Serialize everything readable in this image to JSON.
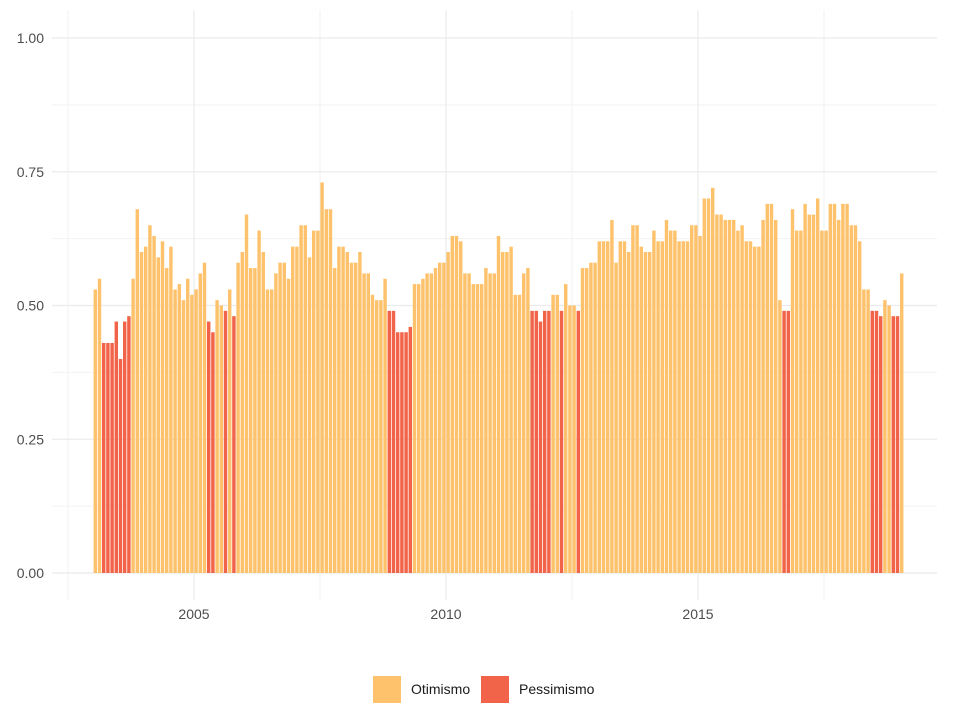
{
  "chart_data": {
    "type": "bar",
    "title": "",
    "xlabel": "",
    "ylabel": "",
    "ylim": [
      0,
      1
    ],
    "xlim": [
      2002.5,
      2019.5
    ],
    "y_ticks": [
      "0.00",
      "0.25",
      "0.50",
      "0.75",
      "1.00"
    ],
    "x_ticks": [
      "2005",
      "2010",
      "2015"
    ],
    "grid": true,
    "legend_position": "bottom",
    "legend": [
      {
        "key": "otimismo",
        "label": "Otimismo",
        "color": "#FEC26C"
      },
      {
        "key": "pessimismo",
        "label": "Pessimismo",
        "color": "#F2644A"
      }
    ],
    "start": "2003-01",
    "frequency": "monthly",
    "threshold": 0.5,
    "values": [
      0.53,
      0.55,
      0.43,
      0.43,
      0.43,
      0.47,
      0.4,
      0.47,
      0.48,
      0.55,
      0.68,
      0.6,
      0.61,
      0.65,
      0.63,
      0.59,
      0.62,
      0.57,
      0.61,
      0.53,
      0.54,
      0.51,
      0.55,
      0.52,
      0.53,
      0.56,
      0.58,
      0.47,
      0.45,
      0.51,
      0.5,
      0.49,
      0.53,
      0.48,
      0.58,
      0.6,
      0.67,
      0.57,
      0.57,
      0.64,
      0.6,
      0.53,
      0.53,
      0.56,
      0.58,
      0.58,
      0.55,
      0.61,
      0.61,
      0.65,
      0.65,
      0.59,
      0.64,
      0.64,
      0.73,
      0.68,
      0.68,
      0.57,
      0.61,
      0.61,
      0.6,
      0.58,
      0.58,
      0.6,
      0.56,
      0.56,
      0.52,
      0.51,
      0.51,
      0.55,
      0.49,
      0.49,
      0.45,
      0.45,
      0.45,
      0.46,
      0.54,
      0.54,
      0.55,
      0.56,
      0.56,
      0.57,
      0.58,
      0.58,
      0.6,
      0.63,
      0.63,
      0.62,
      0.56,
      0.56,
      0.54,
      0.54,
      0.54,
      0.57,
      0.56,
      0.56,
      0.63,
      0.6,
      0.6,
      0.61,
      0.52,
      0.52,
      0.56,
      0.57,
      0.49,
      0.49,
      0.47,
      0.49,
      0.49,
      0.52,
      0.52,
      0.49,
      0.54,
      0.5,
      0.5,
      0.49,
      0.57,
      0.57,
      0.58,
      0.58,
      0.62,
      0.62,
      0.62,
      0.66,
      0.58,
      0.62,
      0.62,
      0.6,
      0.65,
      0.65,
      0.61,
      0.6,
      0.6,
      0.64,
      0.62,
      0.62,
      0.66,
      0.64,
      0.64,
      0.62,
      0.62,
      0.62,
      0.65,
      0.65,
      0.63,
      0.7,
      0.7,
      0.72,
      0.67,
      0.67,
      0.66,
      0.66,
      0.66,
      0.64,
      0.65,
      0.62,
      0.62,
      0.61,
      0.61,
      0.66,
      0.69,
      0.69,
      0.66,
      0.51,
      0.49,
      0.49,
      0.68,
      0.64,
      0.64,
      0.69,
      0.67,
      0.67,
      0.7,
      0.64,
      0.64,
      0.69,
      0.69,
      0.66,
      0.69,
      0.69,
      0.65,
      0.65,
      0.62,
      0.53,
      0.53,
      0.49,
      0.49,
      0.48,
      0.51,
      0.5,
      0.48,
      0.48,
      0.56
    ]
  }
}
